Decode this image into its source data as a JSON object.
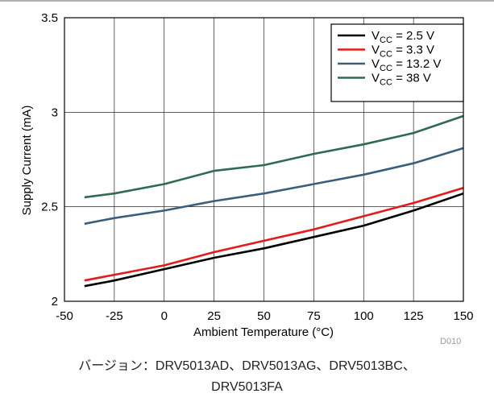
{
  "chart_data": {
    "type": "line",
    "title": "",
    "xlabel": "Ambient Temperature (°C)",
    "ylabel": "Supply Current (mA)",
    "xlim": [
      -50,
      150
    ],
    "ylim": [
      2,
      3.5
    ],
    "xticks": [
      -50,
      -25,
      0,
      25,
      50,
      75,
      100,
      125,
      150
    ],
    "yticks": [
      2,
      2.5,
      3,
      3.5
    ],
    "xtick_labels": [
      "-50",
      "-25",
      "0",
      "25",
      "50",
      "75",
      "100",
      "125",
      "150"
    ],
    "ytick_labels": [
      "2",
      "2.5",
      "3",
      "3.5"
    ],
    "grid": true,
    "legend_position": "top-right",
    "x": [
      -40,
      -25,
      0,
      25,
      50,
      75,
      100,
      125,
      150
    ],
    "series": [
      {
        "legend_main": "V",
        "legend_sub": "CC",
        "legend_rest": " = 2.5 V",
        "color": "#000000",
        "values": [
          2.08,
          2.11,
          2.17,
          2.23,
          2.28,
          2.34,
          2.4,
          2.48,
          2.57
        ]
      },
      {
        "legend_main": "V",
        "legend_sub": "CC",
        "legend_rest": " = 3.3 V",
        "color": "#e41a1c",
        "values": [
          2.11,
          2.14,
          2.19,
          2.26,
          2.32,
          2.38,
          2.45,
          2.52,
          2.6
        ]
      },
      {
        "legend_main": "V",
        "legend_sub": "CC",
        "legend_rest": " = 13.2 V",
        "color": "#3a5f7d",
        "values": [
          2.41,
          2.44,
          2.48,
          2.53,
          2.57,
          2.62,
          2.67,
          2.73,
          2.81
        ]
      },
      {
        "legend_main": "V",
        "legend_sub": "CC",
        "legend_rest": " = 38 V",
        "color": "#2f6b4f",
        "values": [
          2.55,
          2.57,
          2.62,
          2.69,
          2.72,
          2.78,
          2.83,
          2.89,
          2.98
        ]
      }
    ]
  },
  "doc_id": "D010",
  "caption": {
    "line1": "バージョン：DRV5013AD、DRV5013AG、DRV5013BC、",
    "line2": "DRV5013FA"
  }
}
